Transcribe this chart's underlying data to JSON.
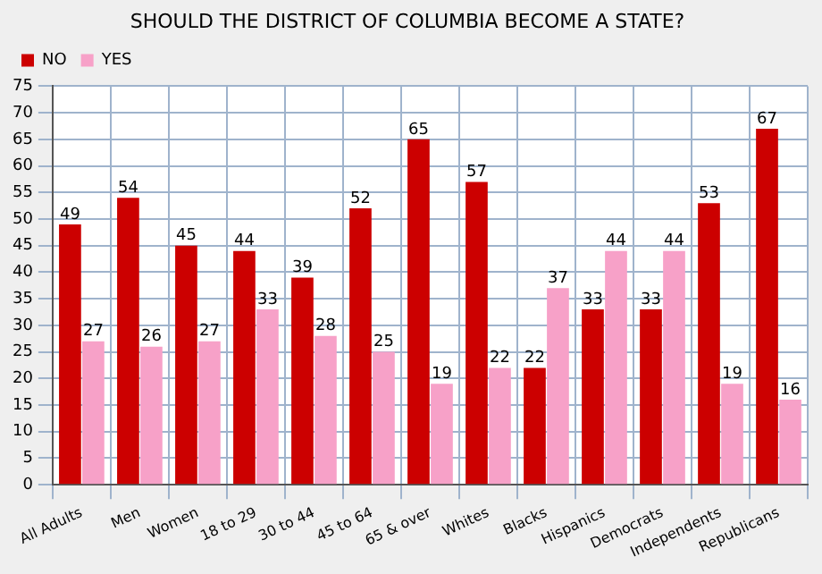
{
  "chart_data": {
    "type": "bar",
    "title": "SHOULD THE DISTRICT OF COLUMBIA BECOME A STATE?",
    "categories": [
      "All Adults",
      "Men",
      "Women",
      "18 to 29",
      "30 to 44",
      "45 to 64",
      "65 & over",
      "Whites",
      "Blacks",
      "Hispanics",
      "Democrats",
      "Independents",
      "Republicans"
    ],
    "series": [
      {
        "name": "NO",
        "color": "#cc0000",
        "values": [
          49,
          54,
          45,
          44,
          39,
          52,
          65,
          57,
          22,
          33,
          33,
          53,
          67
        ]
      },
      {
        "name": "YES",
        "color": "#f7a1c8",
        "values": [
          27,
          26,
          27,
          33,
          28,
          25,
          19,
          22,
          37,
          44,
          44,
          19,
          16
        ]
      }
    ],
    "ylim": [
      0,
      75
    ],
    "yticks": [
      0,
      5,
      10,
      15,
      20,
      25,
      30,
      35,
      40,
      45,
      50,
      55,
      60,
      65,
      70,
      75
    ],
    "grid": true,
    "legend": "top left",
    "data_labels": true
  }
}
